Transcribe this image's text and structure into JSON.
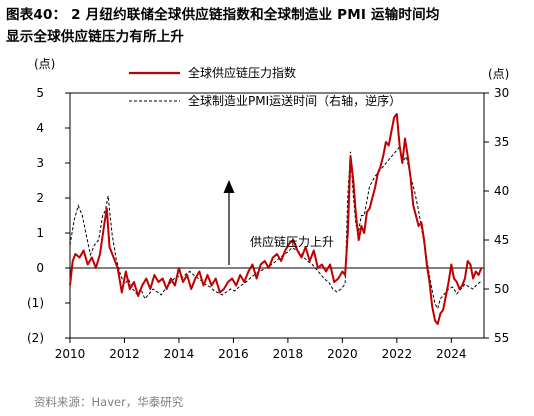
{
  "title": {
    "line1": "图表40： 2 月纽约联储全球供应链指数和全球制造业 PMI 运输时间均",
    "line2": "显示全球供应链压力有所上升"
  },
  "source": "资料来源：Haver，华泰研究",
  "chart_data": {
    "type": "line",
    "left_unit": "(点)",
    "right_unit": "(点)",
    "xlim": [
      2010,
      2025.2
    ],
    "ylim_left": [
      -2,
      5
    ],
    "ylim_right": [
      30,
      55
    ],
    "right_axis_inverted": true,
    "x_ticks": [
      "2010",
      "2012",
      "2014",
      "2016",
      "2018",
      "2020",
      "2022",
      "2024"
    ],
    "left_ticks": [
      "5",
      "4",
      "3",
      "2",
      "1",
      "0",
      "(1)",
      "(2)"
    ],
    "right_ticks": [
      "30",
      "35",
      "40",
      "45",
      "50",
      "55"
    ],
    "annotation": "供应链压力上升",
    "legend_position": "top-center",
    "colors": {
      "gscpi": "#c00000",
      "pmi": "#000000",
      "axis": "#000000"
    },
    "series": [
      {
        "name": "全球供应链压力指数",
        "axis": "left",
        "style": "solid",
        "points": [
          [
            2010.0,
            -0.5
          ],
          [
            2010.1,
            0.2
          ],
          [
            2010.2,
            0.4
          ],
          [
            2010.35,
            0.3
          ],
          [
            2010.5,
            0.5
          ],
          [
            2010.65,
            0.1
          ],
          [
            2010.8,
            0.3
          ],
          [
            2010.95,
            0.0
          ],
          [
            2011.1,
            0.4
          ],
          [
            2011.25,
            1.2
          ],
          [
            2011.35,
            1.7
          ],
          [
            2011.45,
            0.6
          ],
          [
            2011.6,
            0.3
          ],
          [
            2011.75,
            0.0
          ],
          [
            2011.9,
            -0.7
          ],
          [
            2012.05,
            -0.1
          ],
          [
            2012.2,
            -0.6
          ],
          [
            2012.35,
            -0.4
          ],
          [
            2012.5,
            -0.8
          ],
          [
            2012.65,
            -0.5
          ],
          [
            2012.8,
            -0.3
          ],
          [
            2012.95,
            -0.6
          ],
          [
            2013.1,
            -0.2
          ],
          [
            2013.25,
            -0.4
          ],
          [
            2013.4,
            -0.3
          ],
          [
            2013.55,
            -0.6
          ],
          [
            2013.7,
            -0.3
          ],
          [
            2013.85,
            -0.5
          ],
          [
            2014.0,
            0.0
          ],
          [
            2014.15,
            -0.4
          ],
          [
            2014.3,
            -0.2
          ],
          [
            2014.45,
            -0.6
          ],
          [
            2014.6,
            -0.3
          ],
          [
            2014.75,
            -0.1
          ],
          [
            2014.9,
            -0.5
          ],
          [
            2015.05,
            -0.2
          ],
          [
            2015.2,
            -0.5
          ],
          [
            2015.35,
            -0.3
          ],
          [
            2015.5,
            -0.7
          ],
          [
            2015.65,
            -0.6
          ],
          [
            2015.8,
            -0.4
          ],
          [
            2015.95,
            -0.3
          ],
          [
            2016.1,
            -0.5
          ],
          [
            2016.25,
            -0.2
          ],
          [
            2016.4,
            -0.4
          ],
          [
            2016.55,
            -0.1
          ],
          [
            2016.7,
            0.1
          ],
          [
            2016.85,
            -0.3
          ],
          [
            2017.0,
            0.1
          ],
          [
            2017.15,
            0.2
          ],
          [
            2017.3,
            0.0
          ],
          [
            2017.45,
            0.3
          ],
          [
            2017.6,
            0.4
          ],
          [
            2017.75,
            0.2
          ],
          [
            2017.9,
            0.5
          ],
          [
            2018.05,
            0.7
          ],
          [
            2018.2,
            0.8
          ],
          [
            2018.35,
            0.5
          ],
          [
            2018.5,
            0.3
          ],
          [
            2018.65,
            0.6
          ],
          [
            2018.8,
            0.2
          ],
          [
            2018.95,
            0.5
          ],
          [
            2019.1,
            0.0
          ],
          [
            2019.25,
            0.1
          ],
          [
            2019.4,
            -0.1
          ],
          [
            2019.55,
            0.1
          ],
          [
            2019.7,
            -0.4
          ],
          [
            2019.85,
            -0.3
          ],
          [
            2020.0,
            -0.1
          ],
          [
            2020.1,
            -0.2
          ],
          [
            2020.2,
            1.0
          ],
          [
            2020.3,
            3.2
          ],
          [
            2020.4,
            2.5
          ],
          [
            2020.5,
            1.5
          ],
          [
            2020.6,
            0.8
          ],
          [
            2020.7,
            1.2
          ],
          [
            2020.8,
            1.0
          ],
          [
            2020.9,
            1.6
          ],
          [
            2021.0,
            1.7
          ],
          [
            2021.1,
            2.0
          ],
          [
            2021.2,
            2.3
          ],
          [
            2021.3,
            2.7
          ],
          [
            2021.4,
            2.9
          ],
          [
            2021.5,
            3.2
          ],
          [
            2021.6,
            3.6
          ],
          [
            2021.7,
            3.5
          ],
          [
            2021.8,
            3.9
          ],
          [
            2021.9,
            4.3
          ],
          [
            2022.0,
            4.4
          ],
          [
            2022.1,
            3.5
          ],
          [
            2022.2,
            3.0
          ],
          [
            2022.3,
            3.7
          ],
          [
            2022.4,
            3.2
          ],
          [
            2022.5,
            2.6
          ],
          [
            2022.6,
            1.8
          ],
          [
            2022.7,
            1.5
          ],
          [
            2022.8,
            1.2
          ],
          [
            2022.9,
            1.3
          ],
          [
            2023.0,
            0.8
          ],
          [
            2023.1,
            0.1
          ],
          [
            2023.2,
            -0.4
          ],
          [
            2023.3,
            -1.1
          ],
          [
            2023.4,
            -1.5
          ],
          [
            2023.5,
            -1.6
          ],
          [
            2023.6,
            -1.3
          ],
          [
            2023.7,
            -1.2
          ],
          [
            2023.8,
            -0.8
          ],
          [
            2023.9,
            -0.4
          ],
          [
            2024.0,
            0.1
          ],
          [
            2024.1,
            -0.3
          ],
          [
            2024.2,
            -0.4
          ],
          [
            2024.3,
            -0.6
          ],
          [
            2024.4,
            -0.5
          ],
          [
            2024.5,
            -0.3
          ],
          [
            2024.6,
            0.2
          ],
          [
            2024.7,
            0.1
          ],
          [
            2024.8,
            -0.3
          ],
          [
            2024.9,
            -0.1
          ],
          [
            2025.0,
            -0.2
          ],
          [
            2025.1,
            0.0
          ]
        ]
      },
      {
        "name": "全球制造业PMI运送时间（右轴，逆序）",
        "axis": "right",
        "style": "dashed",
        "points": [
          [
            2010.0,
            45.5
          ],
          [
            2010.15,
            43.0
          ],
          [
            2010.3,
            41.5
          ],
          [
            2010.45,
            42.5
          ],
          [
            2010.6,
            44.5
          ],
          [
            2010.75,
            46.5
          ],
          [
            2010.9,
            45.5
          ],
          [
            2011.05,
            45.0
          ],
          [
            2011.2,
            42.5
          ],
          [
            2011.3,
            42.0
          ],
          [
            2011.4,
            40.5
          ],
          [
            2011.55,
            44.5
          ],
          [
            2011.7,
            47.0
          ],
          [
            2011.85,
            48.5
          ],
          [
            2012.0,
            49.5
          ],
          [
            2012.15,
            49.0
          ],
          [
            2012.3,
            50.0
          ],
          [
            2012.45,
            50.5
          ],
          [
            2012.6,
            50.0
          ],
          [
            2012.75,
            51.0
          ],
          [
            2012.9,
            50.5
          ],
          [
            2013.05,
            50.0
          ],
          [
            2013.2,
            50.3
          ],
          [
            2013.35,
            50.6
          ],
          [
            2013.5,
            50.0
          ],
          [
            2013.65,
            49.5
          ],
          [
            2013.8,
            49.0
          ],
          [
            2013.95,
            48.7
          ],
          [
            2014.1,
            48.9
          ],
          [
            2014.25,
            48.5
          ],
          [
            2014.4,
            48.2
          ],
          [
            2014.55,
            48.6
          ],
          [
            2014.7,
            48.9
          ],
          [
            2014.85,
            49.2
          ],
          [
            2015.0,
            49.6
          ],
          [
            2015.15,
            49.8
          ],
          [
            2015.3,
            50.2
          ],
          [
            2015.45,
            50.4
          ],
          [
            2015.6,
            50.6
          ],
          [
            2015.75,
            50.3
          ],
          [
            2015.9,
            50.0
          ],
          [
            2016.05,
            50.2
          ],
          [
            2016.2,
            49.8
          ],
          [
            2016.35,
            49.5
          ],
          [
            2016.5,
            49.2
          ],
          [
            2016.65,
            48.8
          ],
          [
            2016.8,
            48.5
          ],
          [
            2016.95,
            48.2
          ],
          [
            2017.1,
            48.0
          ],
          [
            2017.25,
            47.8
          ],
          [
            2017.4,
            47.5
          ],
          [
            2017.55,
            47.2
          ],
          [
            2017.7,
            46.8
          ],
          [
            2017.85,
            46.5
          ],
          [
            2018.0,
            46.2
          ],
          [
            2018.15,
            45.8
          ],
          [
            2018.3,
            46.0
          ],
          [
            2018.45,
            46.3
          ],
          [
            2018.6,
            46.8
          ],
          [
            2018.75,
            47.2
          ],
          [
            2018.9,
            47.5
          ],
          [
            2019.05,
            48.0
          ],
          [
            2019.2,
            48.5
          ],
          [
            2019.35,
            49.0
          ],
          [
            2019.5,
            49.3
          ],
          [
            2019.65,
            50.0
          ],
          [
            2019.8,
            50.3
          ],
          [
            2019.95,
            50.0
          ],
          [
            2020.1,
            49.5
          ],
          [
            2020.2,
            40.5
          ],
          [
            2020.3,
            36.0
          ],
          [
            2020.4,
            40.5
          ],
          [
            2020.5,
            43.5
          ],
          [
            2020.6,
            44.0
          ],
          [
            2020.7,
            42.5
          ],
          [
            2020.8,
            42.5
          ],
          [
            2020.9,
            41.0
          ],
          [
            2021.0,
            39.5
          ],
          [
            2021.1,
            39.0
          ],
          [
            2021.2,
            38.5
          ],
          [
            2021.35,
            38.0
          ],
          [
            2021.5,
            37.5
          ],
          [
            2021.65,
            37.0
          ],
          [
            2021.8,
            36.5
          ],
          [
            2021.95,
            36.0
          ],
          [
            2022.1,
            35.5
          ],
          [
            2022.2,
            37.0
          ],
          [
            2022.35,
            36.5
          ],
          [
            2022.5,
            38.5
          ],
          [
            2022.65,
            40.0
          ],
          [
            2022.8,
            42.0
          ],
          [
            2022.95,
            44.5
          ],
          [
            2023.1,
            47.0
          ],
          [
            2023.25,
            49.5
          ],
          [
            2023.4,
            51.5
          ],
          [
            2023.5,
            52.0
          ],
          [
            2023.6,
            51.0
          ],
          [
            2023.75,
            50.5
          ],
          [
            2023.9,
            50.0
          ],
          [
            2024.05,
            49.8
          ],
          [
            2024.2,
            50.5
          ],
          [
            2024.35,
            50.0
          ],
          [
            2024.5,
            49.5
          ],
          [
            2024.65,
            49.8
          ],
          [
            2024.8,
            50.0
          ],
          [
            2024.95,
            49.5
          ],
          [
            2025.1,
            49.2
          ]
        ]
      }
    ]
  }
}
